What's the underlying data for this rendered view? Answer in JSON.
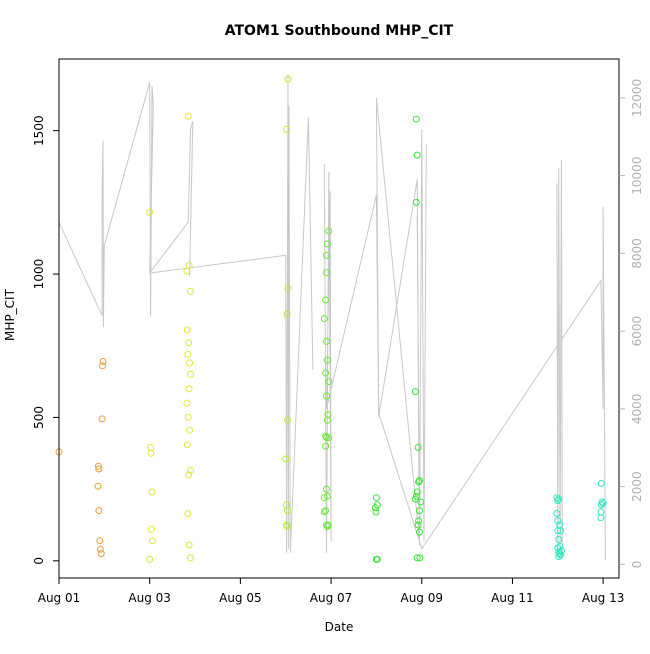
{
  "chart_data": {
    "type": "scatter",
    "title": "ATOM1 Southbound MHP_CIT",
    "xlabel": "Date",
    "ylabel": "MHP_CIT",
    "x_axis": {
      "range": [
        0,
        12.35
      ],
      "ticks": [
        {
          "value": 0,
          "label": "Aug 01"
        },
        {
          "value": 2,
          "label": "Aug 03"
        },
        {
          "value": 4,
          "label": "Aug 05"
        },
        {
          "value": 6,
          "label": "Aug 07"
        },
        {
          "value": 8,
          "label": "Aug 09"
        },
        {
          "value": 10,
          "label": "Aug 11"
        },
        {
          "value": 12,
          "label": "Aug 13"
        }
      ]
    },
    "y_left": {
      "range": [
        -60,
        1750
      ],
      "ticks": [
        {
          "value": 0,
          "label": "0"
        },
        {
          "value": 500,
          "label": "500"
        },
        {
          "value": 1000,
          "label": "1000"
        },
        {
          "value": 1500,
          "label": "1500"
        }
      ]
    },
    "y_right": {
      "range": [
        -350,
        13000
      ],
      "ticks": [
        {
          "value": 0,
          "label": "0"
        },
        {
          "value": 2000,
          "label": "2000"
        },
        {
          "value": 4000,
          "label": "4000"
        },
        {
          "value": 6000,
          "label": "6000"
        },
        {
          "value": 8000,
          "label": "8000"
        },
        {
          "value": 10000,
          "label": "10000"
        },
        {
          "value": 12000,
          "label": "12000"
        }
      ],
      "line_color": "#c8c8c8"
    },
    "grid": false,
    "series": [
      {
        "color": "#e8a03a",
        "points": [
          [
            0.0,
            380
          ],
          [
            0.87,
            330
          ],
          [
            0.88,
            320
          ],
          [
            0.86,
            260
          ],
          [
            0.88,
            175
          ],
          [
            0.9,
            70
          ],
          [
            0.91,
            40
          ],
          [
            0.93,
            25
          ],
          [
            0.95,
            495
          ],
          [
            0.96,
            680
          ],
          [
            0.97,
            695
          ]
        ]
      },
      {
        "color": "#e2e835",
        "points": [
          [
            2.0,
            1215
          ],
          [
            2.02,
            395
          ],
          [
            2.03,
            375
          ],
          [
            2.05,
            240
          ],
          [
            2.04,
            110
          ],
          [
            2.06,
            70
          ],
          [
            2.0,
            5
          ],
          [
            2.85,
            1550
          ],
          [
            2.82,
            1010
          ],
          [
            2.87,
            1030
          ],
          [
            2.9,
            940
          ],
          [
            2.83,
            805
          ],
          [
            2.86,
            760
          ],
          [
            2.84,
            720
          ],
          [
            2.88,
            690
          ],
          [
            2.9,
            650
          ],
          [
            2.87,
            600
          ],
          [
            2.82,
            550
          ],
          [
            2.85,
            500
          ],
          [
            2.88,
            455
          ],
          [
            2.83,
            405
          ],
          [
            2.9,
            315
          ],
          [
            2.86,
            300
          ],
          [
            2.84,
            165
          ],
          [
            2.87,
            55
          ],
          [
            2.9,
            10
          ]
        ]
      },
      {
        "color": "#b6ee2e",
        "points": [
          [
            5.05,
            1680
          ],
          [
            5.02,
            1505
          ],
          [
            5.05,
            950
          ],
          [
            5.03,
            860
          ],
          [
            5.04,
            490
          ],
          [
            5.0,
            355
          ],
          [
            5.02,
            195
          ],
          [
            5.04,
            175
          ],
          [
            5.02,
            125
          ],
          [
            5.03,
            120
          ]
        ]
      },
      {
        "color": "#6ee83a",
        "points": [
          [
            5.95,
            1150
          ],
          [
            5.92,
            1105
          ],
          [
            5.9,
            1065
          ],
          [
            5.9,
            1005
          ],
          [
            5.88,
            910
          ],
          [
            5.85,
            845
          ],
          [
            5.9,
            765
          ],
          [
            5.92,
            700
          ],
          [
            5.88,
            655
          ],
          [
            5.95,
            625
          ],
          [
            5.9,
            575
          ],
          [
            5.93,
            510
          ],
          [
            5.92,
            490
          ],
          [
            5.88,
            435
          ],
          [
            5.95,
            430
          ],
          [
            5.9,
            430
          ],
          [
            5.88,
            400
          ],
          [
            5.9,
            250
          ],
          [
            5.92,
            225
          ],
          [
            5.85,
            220
          ],
          [
            5.88,
            175
          ],
          [
            5.85,
            170
          ],
          [
            5.9,
            125
          ],
          [
            5.92,
            120
          ],
          [
            5.94,
            125
          ]
        ]
      },
      {
        "color": "#35e835",
        "points": [
          [
            7.0,
            220
          ],
          [
            7.02,
            195
          ],
          [
            6.98,
            185
          ],
          [
            6.99,
            170
          ],
          [
            7.0,
            5
          ],
          [
            7.02,
            5
          ],
          [
            7.88,
            1540
          ],
          [
            7.9,
            1415
          ],
          [
            7.88,
            1250
          ],
          [
            7.86,
            590
          ],
          [
            7.92,
            395
          ],
          [
            7.95,
            280
          ],
          [
            7.93,
            275
          ],
          [
            7.9,
            240
          ],
          [
            7.88,
            225
          ],
          [
            7.86,
            215
          ],
          [
            7.98,
            205
          ],
          [
            7.95,
            175
          ],
          [
            7.93,
            140
          ],
          [
            7.92,
            125
          ],
          [
            7.95,
            100
          ],
          [
            7.9,
            10
          ],
          [
            7.96,
            10
          ]
        ]
      },
      {
        "color": "#2ee8c0",
        "points": [
          [
            10.98,
            220
          ],
          [
            11.0,
            210
          ],
          [
            11.02,
            215
          ],
          [
            10.98,
            165
          ],
          [
            11.0,
            140
          ],
          [
            11.04,
            125
          ],
          [
            11.0,
            105
          ],
          [
            11.06,
            105
          ],
          [
            11.02,
            75
          ],
          [
            11.05,
            50
          ],
          [
            11.0,
            45
          ],
          [
            11.08,
            35
          ],
          [
            11.02,
            30
          ],
          [
            11.04,
            25
          ],
          [
            11.06,
            20
          ],
          [
            11.02,
            15
          ],
          [
            11.96,
            270
          ],
          [
            11.98,
            205
          ],
          [
            12.0,
            200
          ],
          [
            11.96,
            195
          ],
          [
            11.95,
            170
          ],
          [
            11.95,
            150
          ]
        ]
      }
    ]
  }
}
